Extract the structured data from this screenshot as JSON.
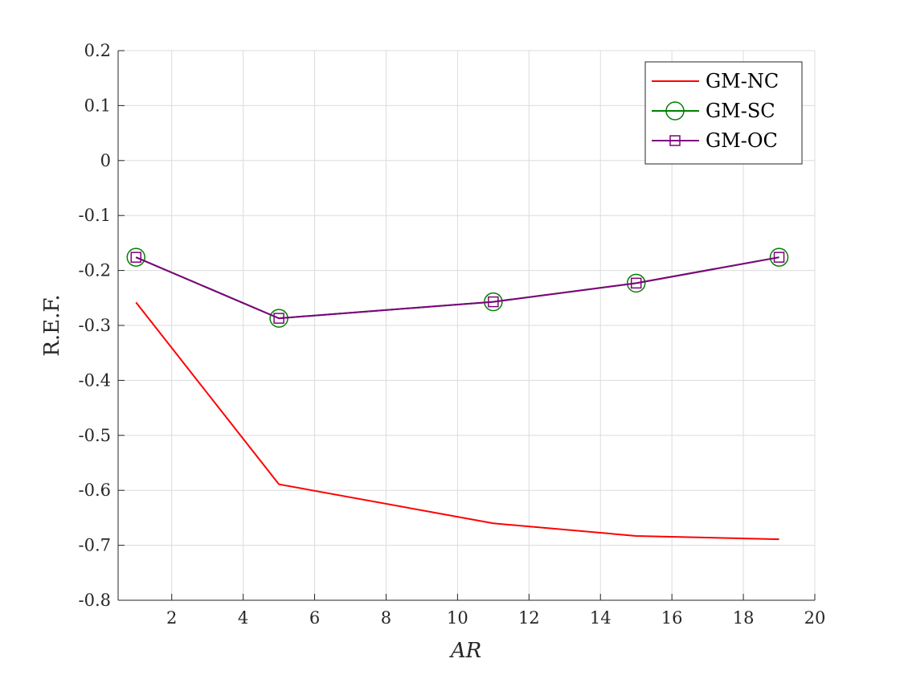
{
  "chart_data": {
    "type": "line",
    "title": "",
    "xlabel": "AR",
    "ylabel": "R.E.F.",
    "xlim": [
      0.5,
      20
    ],
    "ylim": [
      -0.8,
      0.2
    ],
    "x_ticks": [
      2,
      4,
      6,
      8,
      10,
      12,
      14,
      16,
      18,
      20
    ],
    "y_ticks": [
      -0.8,
      -0.7,
      -0.6,
      -0.5,
      -0.4,
      -0.3,
      -0.2,
      -0.1,
      0,
      0.1,
      0.2
    ],
    "x_tick_labels": [
      "2",
      "4",
      "6",
      "8",
      "10",
      "12",
      "14",
      "16",
      "18",
      "20"
    ],
    "y_tick_labels": [
      "-0.8",
      "-0.7",
      "-0.6",
      "-0.5",
      "-0.4",
      "-0.3",
      "-0.2",
      "-0.1",
      "0",
      "0.1",
      "0.2"
    ],
    "grid": true,
    "legend_position": "top-right",
    "x": [
      1,
      5,
      11,
      15,
      19
    ],
    "series": [
      {
        "name": "GM-NC",
        "values": [
          -0.258,
          -0.589,
          -0.66,
          -0.683,
          -0.689
        ],
        "color": "#ff0000",
        "marker": "none"
      },
      {
        "name": "GM-SC",
        "values": [
          -0.176,
          -0.287,
          -0.257,
          -0.223,
          -0.176
        ],
        "color": "#008000",
        "marker": "circle"
      },
      {
        "name": "GM-OC",
        "values": [
          -0.176,
          -0.287,
          -0.257,
          -0.223,
          -0.176
        ],
        "color": "#800080",
        "marker": "square"
      }
    ]
  }
}
